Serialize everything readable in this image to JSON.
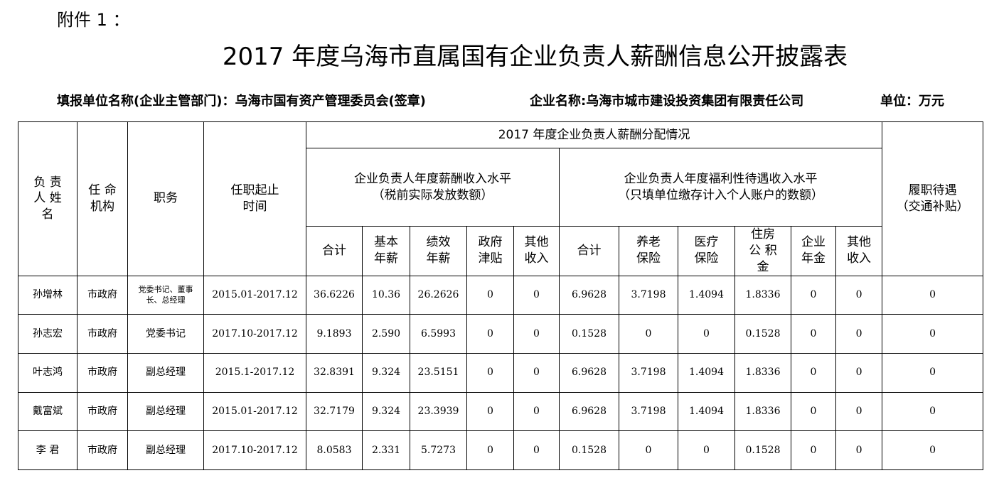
{
  "attachment": "附件 1 ：",
  "title": "2017 年度乌海市直属国有企业负责人薪酬信息公开披露表",
  "meta": {
    "reporting_unit": "填报单位名称(企业主管部门)：乌海市国有资产管理委员会(签章)",
    "company": "企业名称:乌海市城市建设投资集团有限责任公司",
    "unit": "单位：万元"
  },
  "headers": {
    "name": "负 责 人 姓 名",
    "appointing": "任 命 机构",
    "position": "职务",
    "term": "任职起止 时间",
    "group": "2017 年度企业负责人薪酬分配情况",
    "salary_group": "企业负责人年度薪酬收入水平",
    "salary_note": "（税前实际发放数额）",
    "welfare_group": "企业负责人年度福利性待遇收入水平",
    "welfare_note": "（只填单位缴存计入个人账户的数额）",
    "duty": "履职待遇",
    "duty_note": "（交通补贴）",
    "sub": [
      "合计",
      "基本 年薪",
      "绩效 年薪",
      "政府 津贴",
      "其他 收入",
      "合计",
      "养老 保险",
      "医疗 保险",
      "住房公 积金",
      "企业 年金",
      "其他 收入"
    ]
  },
  "rows": [
    [
      "孙增林",
      "市政府",
      "党委书记、董事长、总经理",
      "2015.01-2017.12",
      "36.6226",
      "10.36",
      "26.2626",
      "0",
      "0",
      "6.9628",
      "3.7198",
      "1.4094",
      "1.8336",
      "0",
      "0",
      "0"
    ],
    [
      "孙志宏",
      "市政府",
      "党委书记",
      "2017.10-2017.12",
      "9.1893",
      "2.590",
      "6.5993",
      "0",
      "0",
      "0.1528",
      "0",
      "0",
      "0.1528",
      "0",
      "0",
      "0"
    ],
    [
      "叶志鸿",
      "市政府",
      "副总经理",
      "2015.1-2017.12",
      "32.8391",
      "9.324",
      "23.5151",
      "0",
      "0",
      "6.9628",
      "3.7198",
      "1.4094",
      "1.8336",
      "0",
      "0",
      "0"
    ],
    [
      "戴富斌",
      "市政府",
      "副总经理",
      "2015.01-2017.12",
      "32.7179",
      "9.324",
      "23.3939",
      "0",
      "0",
      "6.9628",
      "3.7198",
      "1.4094",
      "1.8336",
      "0",
      "0",
      "0"
    ],
    [
      "李  君",
      "市政府",
      "副总经理",
      "2017.10-2017.12",
      "8.0583",
      "2.331",
      "5.7273",
      "0",
      "0",
      "0.1528",
      "0",
      "0",
      "0.1528",
      "0",
      "0",
      "0"
    ]
  ]
}
